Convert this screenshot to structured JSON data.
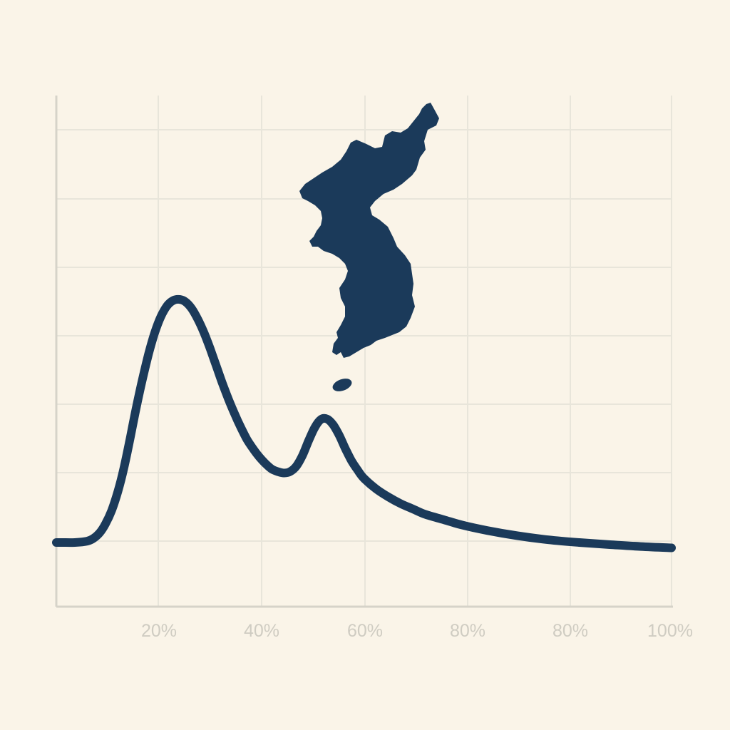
{
  "chart_data": {
    "type": "line",
    "title": "",
    "xlabel": "",
    "ylabel": "",
    "x_tick_labels": [
      "20%",
      "40%",
      "60%",
      "80%",
      "80%",
      "100%"
    ],
    "xlim": [
      0,
      100
    ],
    "ylim": [
      0,
      100
    ],
    "grid": true,
    "legend": "none",
    "series": [
      {
        "color": "#1b3a5a",
        "x": [
          0,
          1,
          3,
          5,
          6,
          7,
          8,
          9,
          10,
          11,
          12,
          13,
          14,
          15,
          16,
          17,
          18,
          19,
          20,
          21,
          22,
          23,
          24,
          25,
          26,
          27,
          28,
          29,
          30,
          31,
          32,
          33,
          34,
          35,
          36,
          37,
          38,
          39,
          40,
          41,
          42,
          43,
          44,
          45,
          46,
          47,
          48,
          49,
          50,
          52,
          54,
          56,
          58,
          60,
          63,
          66,
          70,
          75,
          80,
          85,
          90,
          95,
          100
        ],
        "y": [
          0,
          0,
          0,
          0.5,
          1.5,
          3.5,
          7,
          12,
          19,
          28,
          39,
          50.5,
          61,
          70.5,
          78.5,
          84.5,
          88.5,
          90.5,
          90.9,
          90,
          87.5,
          83.5,
          78.5,
          72.5,
          66,
          59.5,
          53.5,
          48,
          43,
          38.5,
          35,
          32,
          29.5,
          27.5,
          26.5,
          26,
          26.5,
          28.5,
          32.5,
          38,
          43,
          46,
          46.2,
          44,
          40,
          35,
          30.5,
          27,
          24,
          20,
          17,
          14.5,
          12.5,
          10.5,
          8.5,
          6.5,
          4.5,
          2.5,
          1,
          0,
          -0.8,
          -1.5,
          -2
        ]
      }
    ],
    "annotations": [
      {
        "type": "silhouette",
        "icon": "korean-peninsula-map-icon",
        "color": "#1b3a5a"
      }
    ]
  },
  "colors": {
    "background": "#faf4e8",
    "grid": "#e8e5da",
    "axis": "#d6d3c9",
    "tick_text": "#cfccc2",
    "series": "#1b3a5a"
  }
}
